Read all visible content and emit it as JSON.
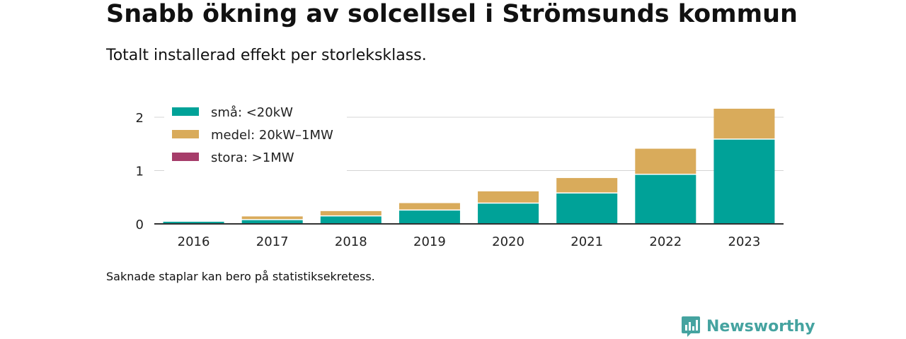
{
  "header": {
    "title": "Snabb ökning av solcellsel i Strömsunds kommun",
    "subtitle": "Totalt installerad effekt per storleksklass."
  },
  "footer": {
    "note": "Saknade staplar kan bero på statistiksekretess.",
    "brand_name": "Newsworthy"
  },
  "icons": {
    "brand_logo": "newsworthy-bar-chart-logo"
  },
  "colors": {
    "small": "#00a298",
    "medium": "#d9ab5b",
    "large": "#a63d6a",
    "brand": "#45a3a0"
  },
  "chart_data": {
    "type": "bar",
    "stacked": true,
    "categories": [
      "2016",
      "2017",
      "2018",
      "2019",
      "2020",
      "2021",
      "2022",
      "2023"
    ],
    "series": [
      {
        "name": "små: <20kW",
        "color": "#00a298",
        "values": [
          0.04,
          0.07,
          0.14,
          0.25,
          0.38,
          0.57,
          0.92,
          1.58
        ]
      },
      {
        "name": "medel: 20kW–1MW",
        "color": "#d9ab5b",
        "values": [
          0.0,
          0.07,
          0.1,
          0.14,
          0.23,
          0.29,
          0.49,
          0.58
        ]
      },
      {
        "name": "stora: >1MW",
        "color": "#a63d6a",
        "values": [
          0,
          0,
          0,
          0,
          0,
          0,
          0,
          0
        ]
      }
    ],
    "yticks": [
      0,
      1,
      2
    ],
    "ylim": [
      0,
      2.3
    ],
    "grid": true,
    "legend_position": "top-left",
    "xlabel": "",
    "ylabel": ""
  }
}
